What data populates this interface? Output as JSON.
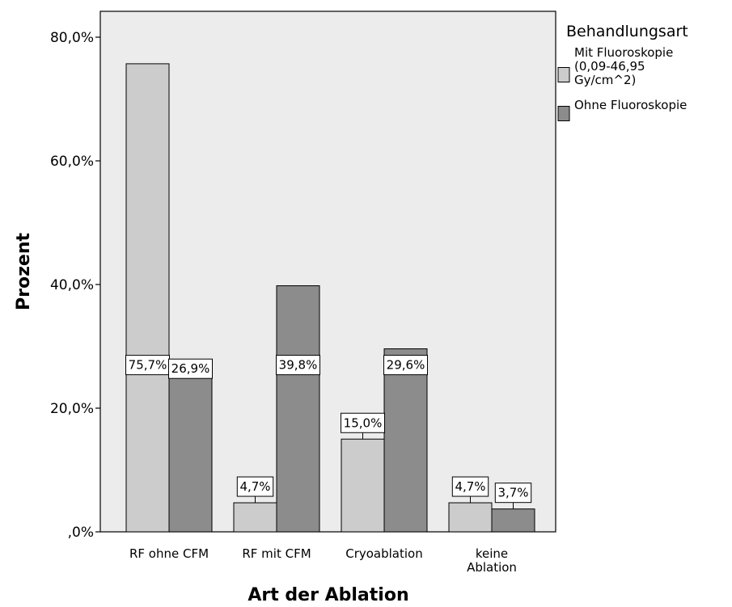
{
  "chart_data": {
    "type": "bar",
    "xlabel": "Art der Ablation",
    "ylabel": "Prozent",
    "ylim": [
      0,
      85
    ],
    "yticks": [
      0,
      20,
      40,
      60,
      80
    ],
    "ytick_labels": [
      ",0%",
      "20,0%",
      "40,0%",
      "60,0%",
      "80,0%"
    ],
    "categories": [
      [
        "RF ohne CFM"
      ],
      [
        "RF mit CFM"
      ],
      [
        "Cryoablation"
      ],
      [
        "keine",
        "Ablation"
      ]
    ],
    "series": [
      {
        "name": "Mit Fluoroskopie (0,09-46,95 Gy/cm^2)",
        "legend_lines": [
          "Mit Fluoroskopie",
          "(0,09-46,95",
          "Gy/cm^2)"
        ],
        "values": [
          75.7,
          4.7,
          15.0,
          4.7
        ],
        "labels": [
          "75,7%",
          "4,7%",
          "15,0%",
          "4,7%"
        ],
        "color": "#cccccc"
      },
      {
        "name": "Ohne Fluoroskopie",
        "legend_lines": [
          "Ohne Fluoroskopie"
        ],
        "values": [
          26.9,
          39.8,
          29.6,
          3.7
        ],
        "labels": [
          "26,9%",
          "39,8%",
          "29,6%",
          "3,7%"
        ],
        "color": "#8c8c8c"
      }
    ],
    "legend": {
      "title": "Behandlungsart",
      "position": "top-right"
    },
    "plot_background": "#ececec",
    "grid": false
  }
}
